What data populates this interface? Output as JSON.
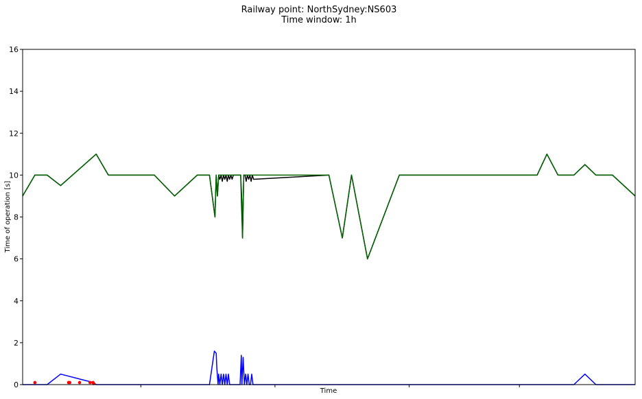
{
  "chart_data": {
    "type": "line",
    "title": "Railway point: NorthSydney:NS603",
    "subtitle": "Time window: 1h",
    "xlabel": "Time",
    "ylabel": "Time of operation [s]",
    "ylim": [
      0,
      16
    ],
    "yticks": [
      "0",
      "2",
      "4",
      "6",
      "8",
      "10",
      "12",
      "14",
      "16"
    ],
    "xlim": [
      0,
      100
    ],
    "xtick_positions": [
      19.3,
      41.2,
      63.1,
      81.1
    ],
    "grid": false,
    "series": [
      {
        "color": "#000000",
        "x": [
          0,
          2,
          4,
          6.2,
          12,
          14,
          21.5,
          24.8,
          28.5,
          30.5,
          31.4,
          31.6,
          31.8,
          32,
          32.2,
          32.4,
          32.6,
          32.8,
          33,
          33.2,
          33.4,
          33.6,
          33.8,
          34,
          34.2,
          34.4,
          34.6,
          34.8,
          35,
          35.2,
          35.6,
          35.8,
          35.9,
          36.1,
          36.3,
          36.5,
          36.7,
          36.9,
          37.1,
          37.3,
          37.5,
          37.7,
          50,
          52.2,
          53.7,
          56.3,
          61.5,
          84,
          85.6,
          87.4,
          90,
          91.8,
          93.6,
          96.3,
          100
        ],
        "y": [
          9,
          10,
          10,
          9.5,
          11,
          10,
          10,
          9,
          10,
          10,
          8,
          10,
          9,
          10,
          9.8,
          10,
          9.7,
          10,
          9.8,
          10,
          9.7,
          10,
          9.8,
          10,
          9.8,
          10,
          10,
          10,
          10,
          10,
          10,
          8,
          7,
          10,
          10,
          9.7,
          10,
          9.8,
          10,
          9.7,
          10,
          9.8,
          10,
          7,
          10,
          6,
          10,
          10,
          11,
          10,
          10,
          10.5,
          10,
          10,
          9
        ]
      },
      {
        "color": "#006400",
        "x": [
          0,
          2,
          4,
          6.2,
          12,
          14,
          21.5,
          24.8,
          28.5,
          30.5,
          31.4,
          31.6,
          31.8,
          32,
          32.4,
          33,
          34.4,
          35.2,
          35.6,
          35.8,
          35.9,
          36.1,
          36.3,
          36.5,
          37.7,
          50,
          52.2,
          53.7,
          56.3,
          61.5,
          84,
          85.6,
          87.4,
          90,
          91.8,
          93.6,
          96.3,
          100
        ],
        "y": [
          9,
          10,
          10,
          9.5,
          11,
          10,
          10,
          9,
          10,
          10,
          8,
          10,
          9,
          10,
          10,
          10,
          10,
          10,
          10,
          8.8,
          7,
          10,
          10,
          10,
          10,
          10,
          7,
          10,
          6,
          10,
          10,
          11,
          10,
          10,
          10.5,
          10,
          10,
          9
        ]
      },
      {
        "color": "#0000ff",
        "x": [
          0,
          4,
          6.2,
          11.5,
          12,
          30.5,
          31.3,
          31.6,
          31.7,
          31.9,
          32,
          32.2,
          32.4,
          32.6,
          32.8,
          33,
          33.2,
          33.4,
          33.6,
          33.8,
          34,
          34.2,
          34.6,
          35.2,
          35.5,
          35.7,
          35.8,
          36,
          36.2,
          36.4,
          36.6,
          36.8,
          37,
          37.2,
          37.4,
          37.6,
          90,
          91.8,
          93.6,
          100
        ],
        "y": [
          0,
          0,
          0.5,
          0.1,
          0,
          0,
          1.6,
          1.5,
          0.8,
          0,
          0.5,
          0,
          0.5,
          0,
          0.5,
          0,
          0.5,
          0,
          0.5,
          0,
          0,
          0,
          0,
          0,
          0,
          1.4,
          0,
          1.3,
          0,
          0.5,
          0,
          0.5,
          0,
          0,
          0.5,
          0,
          0,
          0.5,
          0,
          0
        ]
      }
    ],
    "scatter": {
      "color": "#ff0000",
      "x": [
        2,
        7.5,
        7.7,
        9.3,
        11,
        11.5,
        11.6
      ],
      "y": [
        0.1,
        0.1,
        0.1,
        0.1,
        0.1,
        0.1,
        0.05
      ]
    }
  }
}
